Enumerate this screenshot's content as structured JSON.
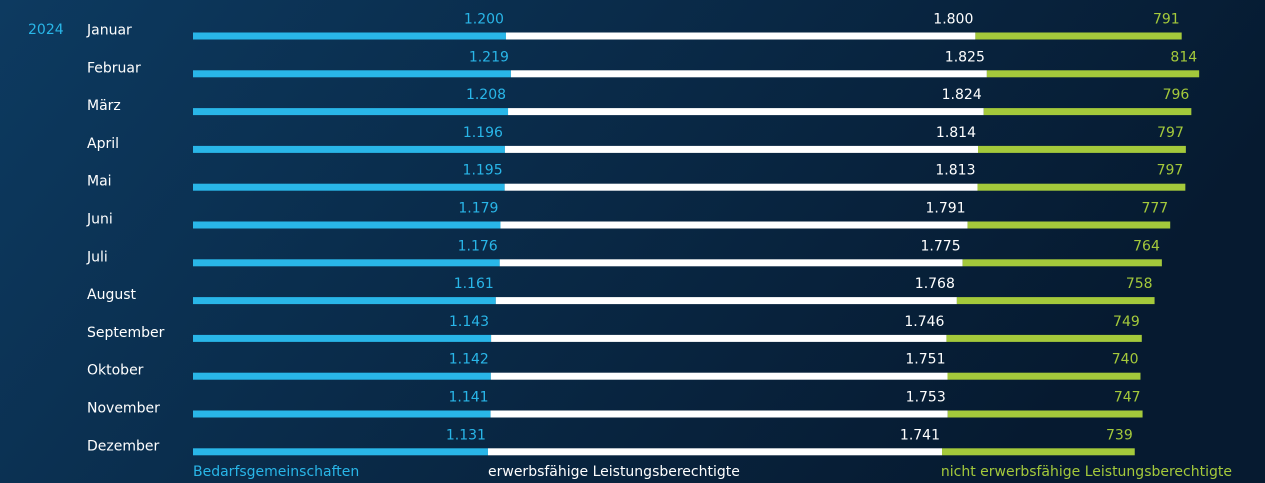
{
  "chart_data": {
    "type": "bar",
    "orientation": "horizontal",
    "stacked": true,
    "year_label": "2024",
    "categories": [
      "Januar",
      "Februar",
      "März",
      "April",
      "Mai",
      "Juni",
      "Juli",
      "August",
      "September",
      "Oktober",
      "November",
      "Dezember"
    ],
    "series": [
      {
        "name": "Bedarfsgemeinschaften",
        "color": "#29b6e8",
        "values": [
          1200,
          1219,
          1208,
          1196,
          1195,
          1179,
          1176,
          1161,
          1143,
          1142,
          1141,
          1131
        ],
        "value_labels": [
          "1.200",
          "1.219",
          "1.208",
          "1.196",
          "1.195",
          "1.179",
          "1.176",
          "1.161",
          "1.143",
          "1.142",
          "1.141",
          "1.131"
        ]
      },
      {
        "name": "erwerbsfähige Leistungsberechtigte",
        "color": "#ffffff",
        "values": [
          1800,
          1825,
          1824,
          1814,
          1813,
          1791,
          1775,
          1768,
          1746,
          1751,
          1753,
          1741
        ],
        "value_labels": [
          "1.800",
          "1.825",
          "1.824",
          "1.814",
          "1.813",
          "1.791",
          "1.775",
          "1.768",
          "1.746",
          "1.751",
          "1.753",
          "1.741"
        ]
      },
      {
        "name": "nicht erwerbsfähige Leistungsberechtigte",
        "color": "#a4c93b",
        "values": [
          791,
          814,
          796,
          797,
          797,
          777,
          764,
          758,
          749,
          740,
          747,
          739
        ]
      }
    ]
  }
}
